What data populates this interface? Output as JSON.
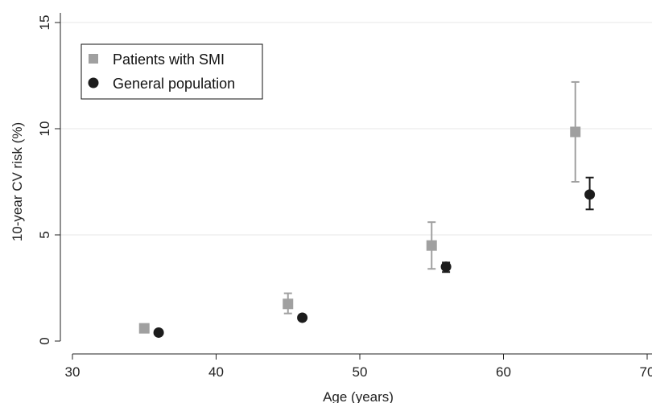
{
  "chart_data": {
    "type": "scatter",
    "title": "",
    "xlabel": "Age (years)",
    "ylabel": "10-year CV risk (%)",
    "xlim": [
      30,
      70
    ],
    "ylim": [
      0,
      15
    ],
    "xticks": [
      30,
      40,
      50,
      60,
      70
    ],
    "yticks": [
      0,
      5,
      10,
      15
    ],
    "grid": "horizontal",
    "legend_position": "top-left",
    "series": [
      {
        "name": "Patients with SMI",
        "marker": "square",
        "color": "#a0a0a0",
        "points": [
          {
            "x": 35,
            "y": 0.6,
            "lo": 0.6,
            "hi": 0.6
          },
          {
            "x": 45,
            "y": 1.75,
            "lo": 1.3,
            "hi": 2.25
          },
          {
            "x": 55,
            "y": 4.5,
            "lo": 3.4,
            "hi": 5.6
          },
          {
            "x": 65,
            "y": 9.85,
            "lo": 7.5,
            "hi": 12.2
          }
        ]
      },
      {
        "name": "General population",
        "marker": "circle",
        "color": "#1c1c1c",
        "points": [
          {
            "x": 36,
            "y": 0.4,
            "lo": 0.4,
            "hi": 0.4
          },
          {
            "x": 46,
            "y": 1.1,
            "lo": 1.1,
            "hi": 1.1
          },
          {
            "x": 56,
            "y": 3.5,
            "lo": 3.25,
            "hi": 3.7
          },
          {
            "x": 66,
            "y": 6.9,
            "lo": 6.2,
            "hi": 7.7
          }
        ]
      }
    ]
  }
}
